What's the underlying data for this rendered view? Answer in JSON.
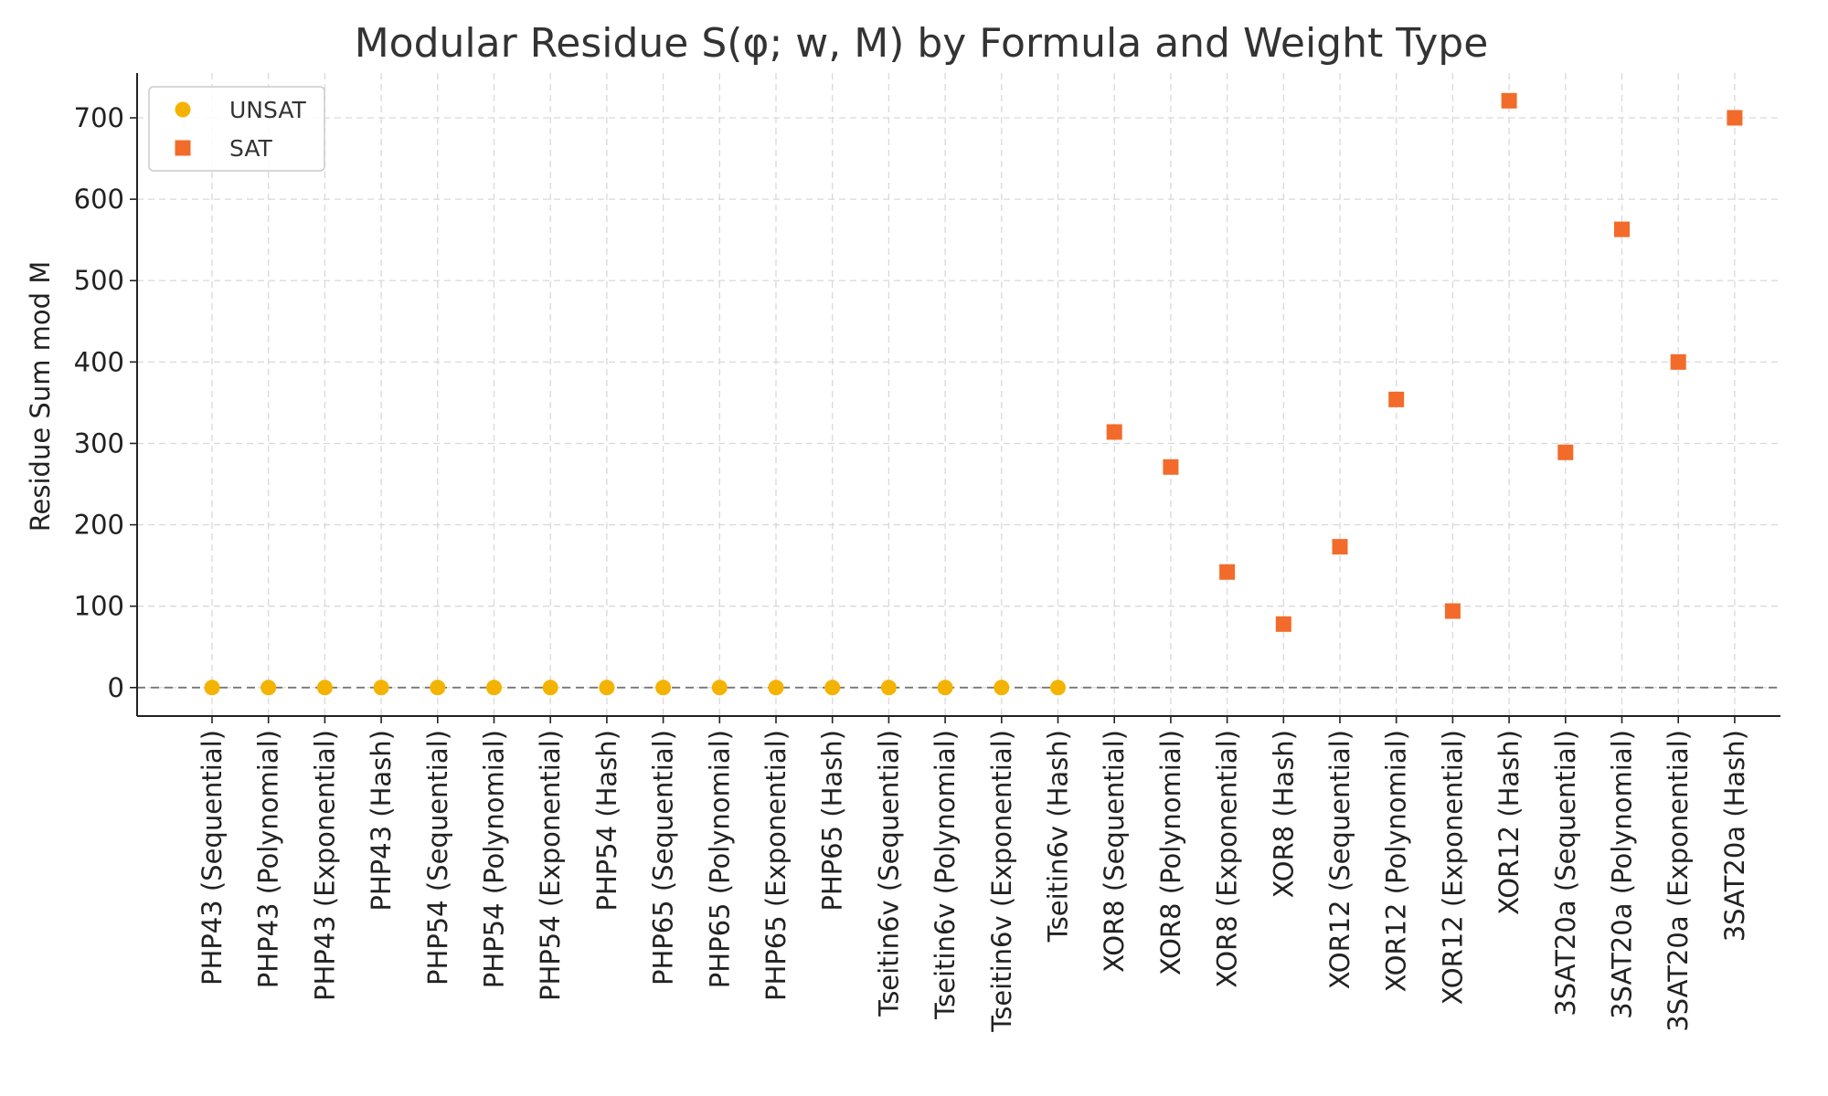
{
  "chart_data": {
    "type": "scatter",
    "title": "Modular Residue S(φ; w, M) by Formula and Weight Type",
    "xlabel": "",
    "ylabel": "Residue Sum mod M",
    "ylim": [
      -35,
      755
    ],
    "yticks": [
      0,
      100,
      200,
      300,
      400,
      500,
      600,
      700
    ],
    "grid": true,
    "legend_position": "upper-left",
    "reference_line_y": 0,
    "categories": [
      "PHP43 (Sequential)",
      "PHP43 (Polynomial)",
      "PHP43 (Exponential)",
      "PHP43 (Hash)",
      "PHP54 (Sequential)",
      "PHP54 (Polynomial)",
      "PHP54 (Exponential)",
      "PHP54 (Hash)",
      "PHP65 (Sequential)",
      "PHP65 (Polynomial)",
      "PHP65 (Exponential)",
      "PHP65 (Hash)",
      "Tseitin6v (Sequential)",
      "Tseitin6v (Polynomial)",
      "Tseitin6v (Exponential)",
      "Tseitin6v (Hash)",
      "XOR8 (Sequential)",
      "XOR8 (Polynomial)",
      "XOR8 (Exponential)",
      "XOR8 (Hash)",
      "XOR12 (Sequential)",
      "XOR12 (Polynomial)",
      "XOR12 (Exponential)",
      "XOR12 (Hash)",
      "3SAT20a (Sequential)",
      "3SAT20a (Polynomial)",
      "3SAT20a (Exponential)",
      "3SAT20a (Hash)"
    ],
    "series": [
      {
        "name": "UNSAT",
        "marker": "circle",
        "color": "#F5B301",
        "x": [
          "PHP43 (Sequential)",
          "PHP43 (Polynomial)",
          "PHP43 (Exponential)",
          "PHP43 (Hash)",
          "PHP54 (Sequential)",
          "PHP54 (Polynomial)",
          "PHP54 (Exponential)",
          "PHP54 (Hash)",
          "PHP65 (Sequential)",
          "PHP65 (Polynomial)",
          "PHP65 (Exponential)",
          "PHP65 (Hash)",
          "Tseitin6v (Sequential)",
          "Tseitin6v (Polynomial)",
          "Tseitin6v (Exponential)",
          "Tseitin6v (Hash)"
        ],
        "values": [
          0,
          0,
          0,
          0,
          0,
          0,
          0,
          0,
          0,
          0,
          0,
          0,
          0,
          0,
          0,
          0
        ]
      },
      {
        "name": "SAT",
        "marker": "square",
        "color": "#F26B2A",
        "x": [
          "XOR8 (Sequential)",
          "XOR8 (Polynomial)",
          "XOR8 (Exponential)",
          "XOR8 (Hash)",
          "XOR12 (Sequential)",
          "XOR12 (Polynomial)",
          "XOR12 (Exponential)",
          "XOR12 (Hash)",
          "3SAT20a (Sequential)",
          "3SAT20a (Polynomial)",
          "3SAT20a (Exponential)",
          "3SAT20a (Hash)"
        ],
        "values": [
          314,
          271,
          142,
          78,
          173,
          354,
          94,
          721,
          289,
          563,
          400,
          700
        ]
      }
    ]
  }
}
